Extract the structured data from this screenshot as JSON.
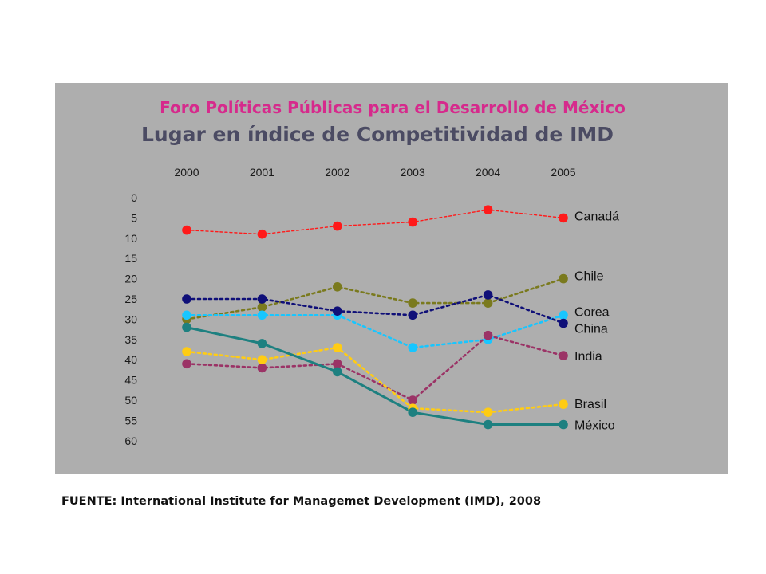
{
  "source_note": "FUENTE: International Institute for Managemet Development (IMD), 2008",
  "chart_data": {
    "type": "line",
    "supertitle": "Foro Políticas Públicas para el Desarrollo de México",
    "title": "Lugar en índice de Competitividad de IMD",
    "xlabel": "",
    "ylabel": "",
    "x": [
      "2000",
      "2001",
      "2002",
      "2003",
      "2004",
      "2005"
    ],
    "y_ticks": [
      0,
      5,
      10,
      15,
      20,
      25,
      30,
      35,
      40,
      45,
      50,
      55,
      60
    ],
    "ylim": [
      0,
      60
    ],
    "y_inverted": true,
    "grid": false,
    "legend": "labels at line ends (right)",
    "colors": {
      "panel": "#aeaeae",
      "supertitle": "#d62a8c",
      "title": "#4b4b63"
    },
    "series": [
      {
        "name": "Canadá",
        "color": "#ff1a1a",
        "style": "dotted-thin",
        "values": [
          8,
          9,
          7,
          6,
          3,
          5
        ]
      },
      {
        "name": "Chile",
        "color": "#7a7a1e",
        "style": "dotted-thick",
        "values": [
          30,
          27,
          22,
          26,
          26,
          20
        ]
      },
      {
        "name": "Corea",
        "color": "#18c6ff",
        "style": "dotted-thick",
        "values": [
          29,
          29,
          29,
          37,
          35,
          29
        ]
      },
      {
        "name": "China",
        "color": "#0f0f78",
        "style": "dotted-thick",
        "values": [
          25,
          25,
          28,
          29,
          24,
          31
        ]
      },
      {
        "name": "India",
        "color": "#9b3366",
        "style": "dotted-thick",
        "values": [
          41,
          42,
          41,
          50,
          34,
          39
        ]
      },
      {
        "name": "Brasil",
        "color": "#ffcc14",
        "style": "dotted-thick",
        "values": [
          38,
          40,
          37,
          52,
          53,
          51
        ]
      },
      {
        "name": "México",
        "color": "#1d8080",
        "style": "solid",
        "values": [
          32,
          36,
          43,
          53,
          56,
          56
        ]
      }
    ]
  }
}
